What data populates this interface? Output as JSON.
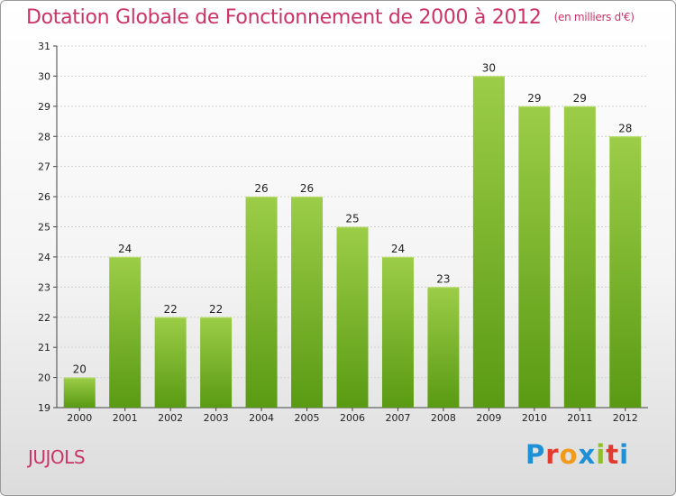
{
  "header": {
    "title": "Dotation Globale de Fonctionnement de 2000 à 2012",
    "unit": "(en milliers d'€)"
  },
  "footer": {
    "commune": "JUJOLS",
    "logo_text": "Proxiti",
    "logo_colors": [
      "#1f8fd6",
      "#e23a2e",
      "#f29a1c",
      "#1f8fd6",
      "#8fbf2f",
      "#e23a2e",
      "#1f8fd6"
    ]
  },
  "colors": {
    "bar_top": "#9ccd48",
    "bar_bottom": "#5a9a13",
    "accent": "#cc3366"
  },
  "chart_data": {
    "type": "bar",
    "categories": [
      "2000",
      "2001",
      "2002",
      "2003",
      "2004",
      "2005",
      "2006",
      "2007",
      "2008",
      "2009",
      "2010",
      "2011",
      "2012"
    ],
    "values": [
      20,
      24,
      22,
      22,
      26,
      26,
      25,
      24,
      23,
      30,
      29,
      29,
      28
    ],
    "ylim": [
      19,
      31
    ],
    "yticks": [
      19,
      20,
      21,
      22,
      23,
      24,
      25,
      26,
      27,
      28,
      29,
      30,
      31
    ],
    "grid": true,
    "xlabel": "",
    "ylabel": ""
  }
}
